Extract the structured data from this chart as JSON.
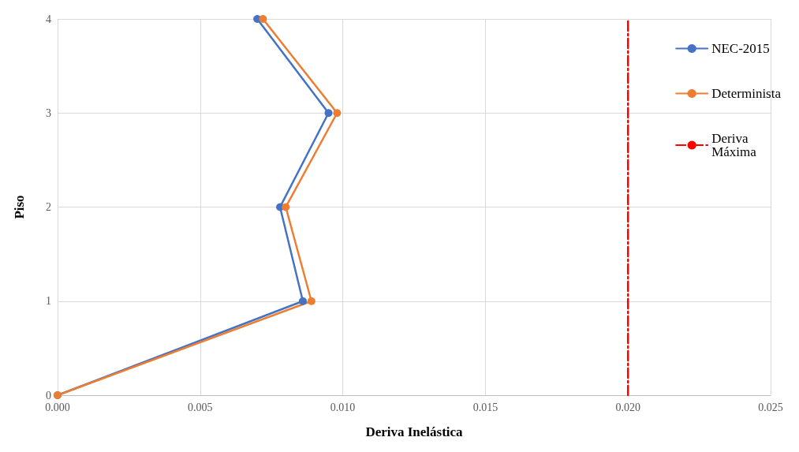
{
  "chart_data": {
    "type": "line",
    "xlabel": "Deriva Inelástica",
    "ylabel": "Piso",
    "xlim": [
      0,
      0.025
    ],
    "xticks": [
      {
        "value": 0,
        "label": "0.000"
      },
      {
        "value": 0.005,
        "label": "0.005"
      },
      {
        "value": 0.01,
        "label": "0.010"
      },
      {
        "value": 0.015,
        "label": "0.015"
      },
      {
        "value": 0.02,
        "label": "0.020"
      },
      {
        "value": 0.025,
        "label": "0.025"
      }
    ],
    "ylim": [
      0,
      4
    ],
    "yticks": [
      0,
      1,
      2,
      3,
      4
    ],
    "grid": true,
    "legend": "right",
    "marker": "circle",
    "series": [
      {
        "name": "NEC-2015",
        "color": "#4472c4",
        "x": [
          0,
          0.0086,
          0.0078,
          0.0095,
          0.007
        ],
        "values": [
          0,
          1,
          2,
          3,
          4
        ]
      },
      {
        "name": "Determinista",
        "color": "#ed7d31",
        "x": [
          0,
          0.0089,
          0.008,
          0.0098,
          0.0072
        ],
        "values": [
          0,
          1,
          2,
          3,
          4
        ]
      },
      {
        "name": "Deriva Máxima",
        "color": "#ff0000",
        "x": [
          0.02,
          0.02
        ],
        "values": [
          0,
          4
        ],
        "line_style": "dashed",
        "marker": "none"
      }
    ]
  }
}
